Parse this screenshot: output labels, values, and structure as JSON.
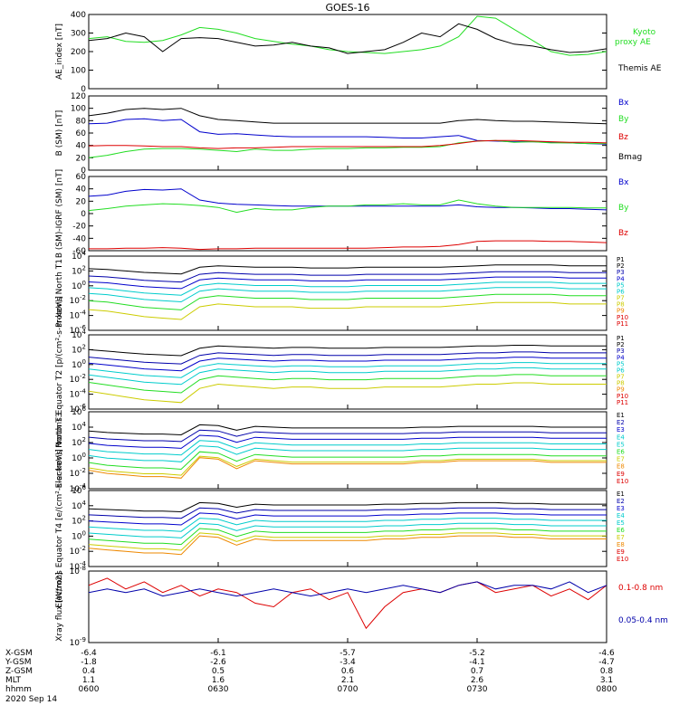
{
  "title": "GOES-16",
  "colors": {
    "black": "#000000",
    "green": "#22dd22",
    "blue": "#0000cc",
    "red": "#dd0000",
    "navy": "#0000aa",
    "cyan": "#00cccc",
    "yellow": "#cccc00",
    "orange": "#ee8800"
  },
  "time_axis": {
    "rows": [
      {
        "label": "X-GSM",
        "values": [
          "-6.4",
          "-6.1",
          "-5.7",
          "-5.2",
          "-4.6"
        ]
      },
      {
        "label": "Y-GSM",
        "values": [
          "-1.8",
          "-2.6",
          "-3.4",
          "-4.1",
          "-4.7"
        ]
      },
      {
        "label": "Z-GSM",
        "values": [
          "0.4",
          "0.5",
          "0.6",
          "0.7",
          "0.8"
        ]
      },
      {
        "label": "MLT",
        "values": [
          "1.1",
          "1.6",
          "2.1",
          "2.6",
          "3.1"
        ]
      },
      {
        "label": "hhmm",
        "values": [
          "0600",
          "0630",
          "0700",
          "0730",
          "0800"
        ]
      }
    ],
    "date": "2020 Sep 14"
  },
  "chart_data": [
    {
      "type": "line",
      "ylabel": "AE_index [nT]",
      "ylim": [
        0,
        400
      ],
      "yticks": [
        "0",
        "100",
        "200",
        "300",
        "400"
      ],
      "legend_position": "right",
      "series": [
        {
          "name": "Kyoto proxy AE",
          "color": "green",
          "values": [
            270,
            280,
            255,
            250,
            260,
            290,
            330,
            320,
            300,
            270,
            255,
            240,
            230,
            210,
            200,
            195,
            190,
            200,
            210,
            230,
            280,
            390,
            380,
            320,
            260,
            200,
            180,
            185,
            200
          ]
        },
        {
          "name": "Themis AE",
          "color": "black",
          "values": [
            260,
            270,
            300,
            280,
            200,
            270,
            275,
            270,
            250,
            230,
            235,
            250,
            230,
            220,
            190,
            200,
            210,
            250,
            300,
            280,
            350,
            320,
            270,
            240,
            230,
            210,
            195,
            200,
            215
          ]
        }
      ]
    },
    {
      "type": "line",
      "ylabel": "B (SM) [nT]",
      "ylim": [
        0,
        120
      ],
      "yticks": [
        "0",
        "20",
        "40",
        "60",
        "80",
        "100",
        "120"
      ],
      "legend_position": "right",
      "series": [
        {
          "name": "Bx",
          "color": "blue",
          "values": [
            75,
            76,
            82,
            83,
            80,
            82,
            62,
            58,
            59,
            57,
            55,
            54,
            54,
            54,
            54,
            54,
            53,
            52,
            52,
            54,
            56,
            48,
            47,
            46,
            46,
            45,
            44,
            43,
            42
          ]
        },
        {
          "name": "By",
          "color": "green",
          "values": [
            20,
            24,
            30,
            34,
            35,
            35,
            34,
            32,
            30,
            34,
            32,
            32,
            34,
            35,
            35,
            36,
            36,
            37,
            37,
            38,
            44,
            47,
            48,
            45,
            46,
            44,
            44,
            43,
            43
          ]
        },
        {
          "name": "Bz",
          "color": "red",
          "values": [
            39,
            40,
            40,
            39,
            38,
            38,
            36,
            35,
            36,
            36,
            37,
            38,
            38,
            38,
            38,
            38,
            38,
            38,
            38,
            40,
            43,
            47,
            48,
            48,
            47,
            46,
            45,
            45,
            44
          ]
        },
        {
          "name": "Bmag",
          "color": "black",
          "values": [
            88,
            92,
            98,
            100,
            98,
            100,
            88,
            82,
            80,
            78,
            76,
            76,
            76,
            76,
            76,
            76,
            76,
            76,
            76,
            76,
            80,
            82,
            80,
            79,
            79,
            78,
            77,
            76,
            75
          ]
        }
      ]
    },
    {
      "type": "line",
      "ylabel": "B (SM)-IGRF (SM) [nT]",
      "ylim": [
        -60,
        60
      ],
      "yticks": [
        "-60",
        "-40",
        "-20",
        "0",
        "20",
        "40",
        "60"
      ],
      "legend_position": "right",
      "series": [
        {
          "name": "Bx",
          "color": "blue",
          "values": [
            28,
            30,
            36,
            39,
            38,
            40,
            22,
            17,
            15,
            14,
            13,
            12,
            12,
            12,
            12,
            12,
            12,
            12,
            12,
            12,
            14,
            11,
            10,
            10,
            9,
            8,
            8,
            7,
            6
          ]
        },
        {
          "name": "By",
          "color": "green",
          "values": [
            5,
            8,
            12,
            14,
            16,
            15,
            13,
            10,
            2,
            8,
            6,
            6,
            10,
            12,
            12,
            14,
            14,
            16,
            14,
            14,
            22,
            16,
            12,
            10,
            10,
            10,
            10,
            9,
            9
          ]
        },
        {
          "name": "Bz",
          "color": "red",
          "values": [
            -57,
            -57,
            -56,
            -56,
            -55,
            -56,
            -58,
            -57,
            -57,
            -56,
            -56,
            -56,
            -56,
            -56,
            -56,
            -56,
            -55,
            -54,
            -54,
            -53,
            -50,
            -45,
            -44,
            -44,
            -44,
            -45,
            -45,
            -46,
            -47
          ]
        }
      ]
    },
    {
      "type": "line",
      "ylabel": "Protons North T1",
      "yscale": "log",
      "ylim": [
        -6,
        4
      ],
      "yticks": [
        "10^-6",
        "10^-4",
        "10^-2",
        "10^0",
        "10^2",
        "10^4"
      ],
      "legend_position": "right",
      "series_names": [
        "P1",
        "P2",
        "P3",
        "P4",
        "P5",
        "P6",
        "P7",
        "P8",
        "P9",
        "P10",
        "P11"
      ],
      "series_colors": [
        "black",
        "black",
        "navy",
        "blue",
        "cyan",
        "cyan",
        "yellow",
        "yellow",
        "orange",
        "red",
        "red"
      ],
      "channel_levels": [
        2.2,
        1.2,
        0.4,
        -0.4,
        -1.2,
        -2.2,
        -3.4
      ],
      "profile": [
        0.1,
        0.0,
        -0.2,
        -0.4,
        -0.5,
        -0.6,
        0.3,
        0.5,
        0.4,
        0.3,
        0.3,
        0.3,
        0.2,
        0.2,
        0.2,
        0.3,
        0.3,
        0.3,
        0.3,
        0.3,
        0.4,
        0.5,
        0.6,
        0.6,
        0.6,
        0.6,
        0.5,
        0.5,
        0.5
      ]
    },
    {
      "type": "line",
      "ylabel": "Protons Equator T2 [p/(cm²-s-sr-keV)]",
      "yscale": "log",
      "ylim": [
        -6,
        4
      ],
      "yticks": [
        "10^-6",
        "10^-4",
        "10^-2",
        "10^0",
        "10^2",
        "10^4"
      ],
      "legend_position": "right",
      "series_names": [
        "P1",
        "P2",
        "P3",
        "P4",
        "P5",
        "P6",
        "P7",
        "P8",
        "P9",
        "P10",
        "P11"
      ],
      "series_colors": [
        "black",
        "black",
        "navy",
        "blue",
        "cyan",
        "cyan",
        "yellow",
        "yellow",
        "orange",
        "red",
        "red"
      ],
      "channel_levels": [
        2.0,
        1.0,
        0.2,
        -0.6,
        -1.4,
        -2.4,
        -3.6
      ],
      "profile": [
        0.0,
        -0.2,
        -0.4,
        -0.6,
        -0.7,
        -0.8,
        0.2,
        0.5,
        0.4,
        0.3,
        0.2,
        0.3,
        0.3,
        0.2,
        0.2,
        0.2,
        0.3,
        0.3,
        0.3,
        0.3,
        0.4,
        0.5,
        0.5,
        0.6,
        0.6,
        0.5,
        0.5,
        0.5,
        0.5
      ]
    },
    {
      "type": "line",
      "ylabel": "Electrons North T3",
      "yscale": "log",
      "ylim": [
        -4,
        6
      ],
      "yticks": [
        "10^-4",
        "10^-2",
        "10^0",
        "10^2",
        "10^4",
        "10^6"
      ],
      "legend_position": "right",
      "series_names": [
        "E1",
        "E2",
        "E3",
        "E4",
        "E5",
        "E6",
        "E7",
        "E8",
        "E9",
        "E10"
      ],
      "series_colors": [
        "black",
        "navy",
        "blue",
        "cyan",
        "cyan",
        "green",
        "yellow",
        "orange",
        "red",
        "red"
      ],
      "channel_levels": [
        3.5,
        2.7,
        1.9,
        1.1,
        0.3,
        -0.6,
        -1.3,
        -1.6
      ],
      "profile": [
        0.0,
        -0.2,
        -0.3,
        -0.4,
        -0.4,
        -0.5,
        0.8,
        0.7,
        0.1,
        0.6,
        0.5,
        0.4,
        0.4,
        0.4,
        0.4,
        0.4,
        0.4,
        0.4,
        0.5,
        0.5,
        0.6,
        0.6,
        0.6,
        0.6,
        0.6,
        0.5,
        0.5,
        0.5,
        0.5
      ]
    },
    {
      "type": "line",
      "ylabel": "Electrons Equator T4 [e/(cm²-s-sr-keV)]",
      "yscale": "log",
      "ylim": [
        -4,
        6
      ],
      "yticks": [
        "10^-4",
        "10^-2",
        "10^0",
        "10^2",
        "10^4",
        "10^6"
      ],
      "legend_position": "right",
      "series_names": [
        "E1",
        "E2",
        "E3",
        "E4",
        "E5",
        "E6",
        "E7",
        "E8",
        "E9",
        "E10"
      ],
      "series_colors": [
        "black",
        "navy",
        "blue",
        "cyan",
        "cyan",
        "green",
        "yellow",
        "orange",
        "red",
        "red"
      ],
      "channel_levels": [
        3.6,
        2.8,
        2.0,
        1.2,
        0.4,
        -0.4,
        -1.1,
        -1.6
      ],
      "profile": [
        0.0,
        -0.1,
        -0.2,
        -0.3,
        -0.3,
        -0.4,
        0.8,
        0.7,
        0.2,
        0.6,
        0.5,
        0.5,
        0.5,
        0.5,
        0.5,
        0.5,
        0.6,
        0.6,
        0.7,
        0.7,
        0.8,
        0.8,
        0.8,
        0.7,
        0.7,
        0.6,
        0.6,
        0.6,
        0.6
      ]
    },
    {
      "type": "line",
      "ylabel": "Xray flux [W/m2]",
      "yscale": "log",
      "ylim": [
        -9,
        -8
      ],
      "yticks": [
        "10^-9",
        "10^-8"
      ],
      "legend_position": "right",
      "series": [
        {
          "name": "0.1-0.8 nm",
          "color": "red",
          "values": [
            -8.2,
            -8.1,
            -8.25,
            -8.15,
            -8.3,
            -8.2,
            -8.35,
            -8.25,
            -8.3,
            -8.45,
            -8.5,
            -8.3,
            -8.25,
            -8.4,
            -8.3,
            -8.8,
            -8.5,
            -8.3,
            -8.25,
            -8.3,
            -8.2,
            -8.15,
            -8.3,
            -8.25,
            -8.2,
            -8.35,
            -8.25,
            -8.4,
            -8.2
          ]
        },
        {
          "name": "0.05-0.4 nm",
          "color": "navy",
          "values": [
            -8.3,
            -8.25,
            -8.3,
            -8.25,
            -8.35,
            -8.3,
            -8.25,
            -8.3,
            -8.35,
            -8.3,
            -8.25,
            -8.3,
            -8.35,
            -8.3,
            -8.25,
            -8.3,
            -8.25,
            -8.2,
            -8.25,
            -8.3,
            -8.2,
            -8.15,
            -8.25,
            -8.2,
            -8.2,
            -8.25,
            -8.15,
            -8.3,
            -8.2
          ]
        }
      ]
    }
  ]
}
